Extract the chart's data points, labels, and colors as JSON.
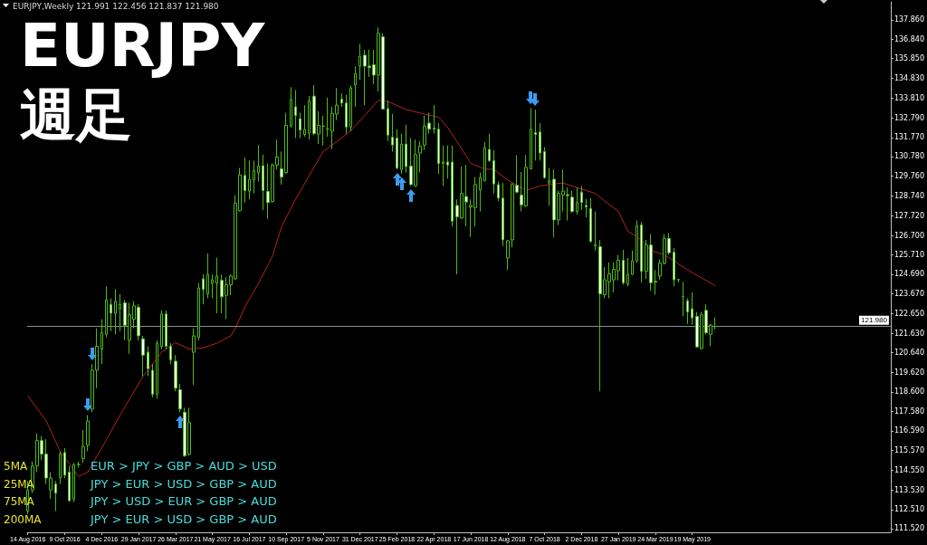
{
  "chart_data": {
    "type": "candlestick",
    "title": "EURJPY",
    "subtitle": "週足",
    "annotations": [
      "EURJPY,Weekly  121.991 122.456 121.837 121.980",
      "5MA",
      "25MA",
      "75MA",
      "200MA",
      "EUR > JPY > GBP > AUD > USD",
      "JPY > EUR > USD > GBP > AUD",
      "JPY > USD > EUR > GBP > AUD",
      "JPY > EUR > USD > GBP > AUD"
    ],
    "color": "#4cbb17",
    "x": [
      "2016-08-14",
      "2016-08-21",
      "2016-08-28",
      "2016-09-04",
      "2016-09-11",
      "2016-09-18",
      "2016-09-25",
      "2016-10-02",
      "2016-10-09",
      "2016-10-16",
      "2016-10-23",
      "2016-10-30",
      "2016-11-06",
      "2016-11-13",
      "2016-11-20",
      "2016-11-27",
      "2016-12-04",
      "2016-12-11",
      "2016-12-18",
      "2016-12-25",
      "2017-01-01",
      "2017-01-08",
      "2017-01-15",
      "2017-01-22",
      "2017-01-29",
      "2017-02-05",
      "2017-02-12",
      "2017-02-19",
      "2017-02-26",
      "2017-03-05",
      "2017-03-12",
      "2017-03-19",
      "2017-03-26",
      "2017-04-02",
      "2017-04-09",
      "2017-04-16",
      "2017-04-23",
      "2017-04-30",
      "2017-05-07",
      "2017-05-14",
      "2017-05-21",
      "2017-05-28",
      "2017-06-04",
      "2017-06-11",
      "2017-06-18",
      "2017-06-25",
      "2017-07-02",
      "2017-07-09",
      "2017-07-16",
      "2017-07-23",
      "2017-07-30",
      "2017-08-06",
      "2017-08-13",
      "2017-08-20",
      "2017-08-27",
      "2017-09-03",
      "2017-09-10",
      "2017-09-17",
      "2017-09-24",
      "2017-10-01",
      "2017-10-08",
      "2017-10-15",
      "2017-10-22",
      "2017-10-29",
      "2017-11-05",
      "2017-11-12",
      "2017-11-19",
      "2017-11-26",
      "2017-12-03",
      "2017-12-10",
      "2017-12-17",
      "2017-12-24",
      "2017-12-31",
      "2018-01-07",
      "2018-01-14",
      "2018-01-21",
      "2018-01-28",
      "2018-02-04",
      "2018-02-11",
      "2018-02-18",
      "2018-02-25",
      "2018-03-04",
      "2018-03-11",
      "2018-03-18",
      "2018-03-25",
      "2018-04-01",
      "2018-04-08",
      "2018-04-15",
      "2018-04-22",
      "2018-04-29",
      "2018-05-06",
      "2018-05-13",
      "2018-05-20",
      "2018-05-27",
      "2018-06-03",
      "2018-06-10",
      "2018-06-17",
      "2018-06-24",
      "2018-07-01",
      "2018-07-08",
      "2018-07-15",
      "2018-07-22",
      "2018-07-29",
      "2018-08-05",
      "2018-08-12",
      "2018-08-19",
      "2018-08-26",
      "2018-09-02",
      "2018-09-09",
      "2018-09-16",
      "2018-09-23",
      "2018-09-30",
      "2018-10-07",
      "2018-10-14",
      "2018-10-21",
      "2018-10-28",
      "2018-11-04",
      "2018-11-11",
      "2018-11-18",
      "2018-11-25",
      "2018-12-02",
      "2018-12-09",
      "2018-12-16",
      "2018-12-23",
      "2018-12-30",
      "2019-01-06",
      "2019-01-13",
      "2019-01-20",
      "2019-01-27",
      "2019-02-03",
      "2019-02-10",
      "2019-02-17",
      "2019-02-24",
      "2019-03-03",
      "2019-03-10",
      "2019-03-17",
      "2019-03-24",
      "2019-03-31",
      "2019-04-07",
      "2019-04-14",
      "2019-04-21",
      "2019-04-28",
      "2019-05-05",
      "2019-05-12",
      "2019-05-19",
      "2019-05-26",
      "2019-06-02",
      "2019-06-09",
      "2019-06-16",
      "2019-06-23"
    ],
    "ohlc": [
      [
        112.43,
        113.98,
        112.28,
        113.52
      ],
      [
        113.52,
        114.99,
        113.36,
        114.76
      ],
      [
        114.76,
        116.46,
        114.45,
        116.08
      ],
      [
        116.08,
        116.31,
        115.07,
        115.38
      ],
      [
        115.38,
        116.15,
        113.83,
        114.14
      ],
      [
        113.52,
        114.45,
        113.05,
        114.14
      ],
      [
        113.83,
        113.98,
        112.43,
        113.36
      ],
      [
        114.14,
        115.53,
        113.83,
        115.38
      ],
      [
        115.46,
        115.69,
        114.14,
        114.29
      ],
      [
        114.45,
        114.76,
        112.9,
        112.97
      ],
      [
        113.05,
        114.92,
        112.9,
        114.84
      ],
      [
        114.84,
        114.99,
        114.68,
        114.84
      ],
      [
        115.15,
        116.62,
        114.92,
        115.77
      ],
      [
        115.84,
        117.4,
        115.53,
        117.09
      ],
      [
        117.71,
        120.03,
        117.55,
        119.72
      ],
      [
        119.72,
        121.89,
        118.79,
        120.96
      ],
      [
        120.81,
        122.36,
        120.03,
        121.66
      ],
      [
        121.58,
        124.06,
        121.43,
        123.36
      ],
      [
        123.13,
        123.44,
        121.74,
        122.67
      ],
      [
        122.67,
        123.91,
        121.58,
        123.29
      ],
      [
        122.9,
        123.67,
        121.74,
        123.13
      ],
      [
        123.21,
        123.36,
        121.27,
        122.05
      ],
      [
        121.27,
        123.21,
        120.57,
        122.59
      ],
      [
        122.36,
        123.29,
        121.89,
        123.05
      ],
      [
        122.98,
        123.13,
        121.27,
        121.5
      ],
      [
        121.35,
        121.5,
        119.41,
        120.5
      ],
      [
        120.65,
        120.96,
        119.41,
        119.8
      ],
      [
        119.72,
        120.03,
        118.32,
        118.48
      ],
      [
        118.48,
        121.27,
        118.25,
        121.12
      ],
      [
        120.96,
        122.82,
        120.81,
        122.63
      ],
      [
        122.63,
        122.82,
        120.81,
        120.96
      ],
      [
        120.96,
        121.12,
        120.03,
        120.26
      ],
      [
        120.19,
        120.5,
        118.63,
        118.79
      ],
      [
        118.71,
        119.02,
        117.55,
        117.71
      ],
      [
        117.55,
        117.78,
        115.23,
        115.3
      ],
      [
        115.38,
        117.78,
        115.3,
        117.01
      ],
      [
        120.65,
        121.89,
        118.95,
        121.5
      ],
      [
        121.43,
        124.22,
        121.27,
        123.98
      ],
      [
        124.45,
        124.68,
        123.13,
        123.91
      ],
      [
        123.67,
        125.77,
        123.44,
        124.68
      ],
      [
        124.22,
        124.68,
        123.44,
        124.4
      ],
      [
        124.22,
        125.54,
        122.67,
        124.6
      ],
      [
        124.37,
        124.68,
        122.67,
        123.52
      ],
      [
        123.6,
        124.53,
        122.36,
        124.14
      ],
      [
        124.14,
        124.68,
        123.6,
        124.6
      ],
      [
        124.45,
        128.79,
        124.4,
        128.37
      ],
      [
        127.98,
        130.19,
        127.94,
        129.83
      ],
      [
        129.8,
        130.73,
        128.4,
        129.02
      ],
      [
        128.99,
        130.57,
        128.56,
        129.6
      ],
      [
        129.57,
        130.57,
        128.87,
        130.06
      ],
      [
        129.95,
        131.38,
        129.49,
        130.29
      ],
      [
        130.31,
        130.88,
        128.01,
        129.02
      ],
      [
        128.98,
        130.42,
        127.55,
        128.4
      ],
      [
        128.45,
        130.42,
        128.4,
        130.34
      ],
      [
        130.34,
        131.66,
        130.11,
        130.76
      ],
      [
        130.15,
        131.04,
        129.33,
        129.72
      ],
      [
        129.95,
        133.05,
        129.88,
        132.4
      ],
      [
        132.36,
        134.37,
        132.28,
        133.75
      ],
      [
        133.36,
        134.22,
        131.74,
        132.9
      ],
      [
        132.74,
        133.05,
        131.74,
        132.15
      ],
      [
        131.92,
        133.44,
        131.81,
        132.17
      ],
      [
        132.0,
        133.91,
        131.66,
        133.67
      ],
      [
        133.91,
        134.48,
        131.89,
        131.97
      ],
      [
        131.94,
        133.13,
        131.43,
        132.4
      ],
      [
        132.35,
        132.9,
        131.35,
        132.36
      ],
      [
        132.2,
        133.83,
        131.81,
        132.2
      ],
      [
        132.09,
        133.36,
        131.16,
        133.01
      ],
      [
        132.98,
        134.33,
        132.67,
        133.44
      ],
      [
        133.75,
        134.06,
        133.36,
        133.55
      ],
      [
        133.55,
        133.98,
        131.97,
        132.31
      ],
      [
        132.31,
        134.45,
        132.09,
        134.33
      ],
      [
        134.48,
        135.46,
        133.36,
        135.07
      ],
      [
        135.46,
        136.62,
        134.76,
        135.97
      ],
      [
        136.03,
        136.31,
        133.44,
        135.46
      ],
      [
        135.46,
        136.31,
        134.91,
        135.38
      ],
      [
        135.53,
        136.31,
        134.53,
        135.0
      ],
      [
        135.0,
        137.47,
        134.14,
        137.16
      ],
      [
        136.98,
        137.16,
        133.24,
        133.24
      ],
      [
        133.26,
        133.67,
        131.58,
        131.89
      ],
      [
        131.78,
        132.98,
        131.04,
        131.38
      ],
      [
        131.74,
        132.2,
        130.11,
        130.19
      ],
      [
        130.11,
        131.97,
        129.88,
        131.43
      ],
      [
        131.43,
        132.43,
        129.95,
        130.26
      ],
      [
        130.29,
        131.74,
        129.26,
        129.33
      ],
      [
        129.26,
        131.66,
        129.21,
        130.88
      ],
      [
        130.96,
        131.58,
        129.95,
        131.32
      ],
      [
        131.38,
        132.9,
        131.12,
        132.36
      ],
      [
        132.51,
        133.05,
        131.97,
        132.2
      ],
      [
        132.25,
        133.44,
        131.97,
        132.2
      ],
      [
        132.2,
        132.51,
        129.88,
        130.42
      ],
      [
        130.42,
        131.35,
        129.26,
        130.5
      ],
      [
        130.5,
        131.35,
        129.64,
        130.34
      ],
      [
        130.5,
        131.35,
        127.16,
        127.44
      ],
      [
        128.25,
        128.56,
        124.68,
        127.66
      ],
      [
        127.6,
        130.26,
        127.55,
        128.87
      ],
      [
        128.71,
        130.34,
        127.16,
        128.43
      ],
      [
        128.17,
        128.56,
        126.62,
        128.25
      ],
      [
        128.14,
        129.72,
        127.16,
        129.33
      ],
      [
        129.05,
        129.95,
        127.94,
        129.69
      ],
      [
        129.53,
        131.53,
        129.49,
        131.23
      ],
      [
        131.15,
        131.97,
        130.5,
        130.57
      ],
      [
        130.57,
        131.12,
        128.87,
        129.36
      ],
      [
        129.33,
        129.49,
        128.48,
        128.63
      ],
      [
        128.63,
        129.41,
        126.15,
        126.47
      ],
      [
        125.53,
        126.47,
        124.91,
        126.42
      ],
      [
        126.47,
        129.41,
        126.08,
        129.33
      ],
      [
        129.29,
        130.85,
        128.87,
        128.94
      ],
      [
        128.79,
        129.98,
        127.94,
        128.28
      ],
      [
        128.22,
        130.85,
        128.17,
        130.22
      ],
      [
        130.15,
        133.29,
        130.11,
        132.2
      ],
      [
        132.02,
        133.21,
        130.57,
        131.92
      ],
      [
        132.05,
        132.51,
        130.57,
        130.96
      ],
      [
        131.04,
        131.27,
        129.64,
        129.69
      ],
      [
        129.41,
        130.19,
        128.25,
        129.53
      ],
      [
        129.61,
        130.11,
        126.62,
        127.5
      ],
      [
        127.5,
        129.02,
        127.24,
        128.87
      ],
      [
        128.79,
        130.11,
        127.94,
        128.99
      ],
      [
        128.81,
        129.18,
        127.47,
        128.76
      ],
      [
        128.68,
        129.02,
        127.86,
        127.94
      ],
      [
        127.94,
        129.18,
        127.78,
        128.4
      ],
      [
        128.94,
        129.26,
        128.01,
        128.4
      ],
      [
        128.25,
        128.59,
        127.63,
        128.17
      ],
      [
        128.09,
        128.63,
        126.31,
        126.39
      ],
      [
        126.15,
        127.94,
        125.92,
        126.23
      ],
      [
        126.11,
        126.46,
        118.63,
        123.67
      ],
      [
        123.63,
        125.07,
        123.44,
        124.4
      ],
      [
        124.29,
        125.3,
        123.44,
        124.71
      ],
      [
        124.4,
        125.3,
        123.75,
        124.94
      ],
      [
        124.87,
        125.69,
        124.37,
        125.41
      ],
      [
        125.41,
        125.95,
        124.14,
        124.25
      ],
      [
        124.18,
        125.53,
        124.06,
        124.68
      ],
      [
        124.68,
        125.92,
        124.65,
        125.38
      ],
      [
        125.38,
        127.47,
        125.3,
        127.19
      ],
      [
        127.24,
        127.4,
        124.25,
        124.84
      ],
      [
        124.84,
        126.46,
        124.45,
        126.2
      ],
      [
        126.2,
        126.77,
        123.83,
        124.25
      ],
      [
        124.32,
        124.91,
        123.63,
        124.29
      ],
      [
        124.6,
        125.46,
        124.4,
        125.27
      ],
      [
        125.27,
        126.77,
        125.18,
        126.54
      ],
      [
        126.54,
        126.82,
        125.69,
        125.8
      ],
      [
        125.83,
        126.05,
        124.06,
        124.4
      ],
      [
        124.42,
        124.45,
        124.25,
        124.4
      ],
      [
        123.53,
        124.29,
        122.51,
        123.52
      ],
      [
        123.32,
        123.44,
        122.12,
        122.74
      ],
      [
        122.9,
        123.75,
        122.08,
        122.43
      ],
      [
        122.51,
        122.74,
        120.88,
        120.93
      ],
      [
        120.84,
        122.74,
        120.81,
        122.59
      ],
      [
        122.82,
        123.13,
        121.58,
        121.66
      ],
      [
        121.58,
        122.12,
        120.96,
        122.05
      ],
      [
        121.991,
        122.456,
        121.837,
        121.98
      ]
    ],
    "series": [
      {
        "type": "line",
        "color": "#b22222",
        "marker": "none",
        "x": [
          "2016-08-14",
          "2016-09-11",
          "2016-10-02",
          "2016-10-30",
          "2016-11-13",
          "2016-12-04",
          "2017-01-01",
          "2017-02-05",
          "2017-03-05",
          "2017-03-26",
          "2017-04-16",
          "2017-05-07",
          "2017-05-28",
          "2017-06-18",
          "2017-06-25",
          "2017-07-09",
          "2017-07-30",
          "2017-08-20",
          "2017-09-03",
          "2017-09-24",
          "2017-10-15",
          "2017-11-05",
          "2017-12-03",
          "2017-12-17",
          "2018-01-07",
          "2018-01-28",
          "2018-02-11",
          "2018-03-11",
          "2018-04-08",
          "2018-04-29",
          "2018-05-13",
          "2018-06-03",
          "2018-06-17",
          "2018-07-08",
          "2018-07-22",
          "2018-08-12",
          "2018-09-09",
          "2018-09-30",
          "2018-10-21",
          "2018-11-04",
          "2018-12-02",
          "2018-12-23",
          "2019-01-06",
          "2019-01-27",
          "2019-02-10",
          "2019-03-03",
          "2019-03-17",
          "2019-04-07",
          "2019-04-28",
          "2019-05-19",
          "2019-06-09",
          "2019-06-23"
        ],
        "values": [
          118.4,
          117.09,
          115.53,
          114.21,
          114.45,
          115.69,
          117.4,
          119.41,
          120.65,
          121.15,
          120.81,
          120.88,
          121.12,
          121.5,
          121.89,
          122.98,
          124.22,
          125.61,
          127.16,
          128.56,
          129.8,
          131.04,
          131.74,
          132.12,
          132.9,
          133.7,
          133.64,
          133.21,
          132.98,
          132.82,
          132.28,
          131.19,
          130.42,
          130.14,
          130.11,
          129.57,
          129.02,
          129.26,
          129.36,
          129.41,
          129.1,
          128.87,
          128.48,
          127.94,
          126.93,
          126.46,
          125.92,
          125.69,
          125.22,
          124.76,
          124.37,
          124.09
        ]
      }
    ],
    "xlim": [
      "2016-08-13",
      "2020-03-15"
    ],
    "xticks": [
      {
        "value": "2016-08-14",
        "label": "14 Aug 2016"
      },
      {
        "value": "2016-10-09",
        "label": "9 Oct 2016"
      },
      {
        "value": "2016-12-04",
        "label": "4 Dec 2016"
      },
      {
        "value": "2017-01-29",
        "label": "29 Jan 2017"
      },
      {
        "value": "2017-03-26",
        "label": "26 Mar 2017"
      },
      {
        "value": "2017-05-21",
        "label": "21 May 2017"
      },
      {
        "value": "2017-07-16",
        "label": "16 Jul 2017"
      },
      {
        "value": "2017-09-10",
        "label": "10 Sep 2017"
      },
      {
        "value": "2017-11-05",
        "label": "5 Nov 2017"
      },
      {
        "value": "2017-12-31",
        "label": "31 Dec 2017"
      },
      {
        "value": "2018-02-25",
        "label": "25 Feb 2018"
      },
      {
        "value": "2018-04-22",
        "label": "22 Apr 2018"
      },
      {
        "value": "2018-06-17",
        "label": "17 Jun 2018"
      },
      {
        "value": "2018-08-12",
        "label": "12 Aug 2018"
      },
      {
        "value": "2018-10-07",
        "label": "7 Oct 2018"
      },
      {
        "value": "2018-12-02",
        "label": "2 Dec 2018"
      },
      {
        "value": "2019-01-27",
        "label": "27 Jan 2019"
      },
      {
        "value": "2019-03-24",
        "label": "24 Mar 2019"
      },
      {
        "value": "2019-05-19",
        "label": "19 May 2019"
      }
    ],
    "ylim": [
      111.33,
      138.79
    ],
    "yticks": [
      {
        "value": 137.86,
        "label": "137.860"
      },
      {
        "value": 136.84,
        "label": "136.840"
      },
      {
        "value": 135.85,
        "label": "135.850"
      },
      {
        "value": 134.83,
        "label": "134.830"
      },
      {
        "value": 133.81,
        "label": "133.810"
      },
      {
        "value": 132.79,
        "label": "132.790"
      },
      {
        "value": 131.77,
        "label": "131.770"
      },
      {
        "value": 130.78,
        "label": "130.780"
      },
      {
        "value": 129.76,
        "label": "129.760"
      },
      {
        "value": 128.74,
        "label": "128.740"
      },
      {
        "value": 127.72,
        "label": "127.720"
      },
      {
        "value": 126.7,
        "label": "126.700"
      },
      {
        "value": 125.71,
        "label": "125.710"
      },
      {
        "value": 124.69,
        "label": "124.690"
      },
      {
        "value": 123.67,
        "label": "123.670"
      },
      {
        "value": 122.65,
        "label": "122.650"
      },
      {
        "value": 121.63,
        "label": "121.630"
      },
      {
        "value": 120.64,
        "label": "120.640"
      },
      {
        "value": 119.62,
        "label": "119.620"
      },
      {
        "value": 118.6,
        "label": "118.600"
      },
      {
        "value": 117.58,
        "label": "117.580"
      },
      {
        "value": 116.59,
        "label": "116.590"
      },
      {
        "value": 115.57,
        "label": "115.570"
      },
      {
        "value": 114.55,
        "label": "114.550"
      },
      {
        "value": 113.53,
        "label": "113.530"
      },
      {
        "value": 112.51,
        "label": "112.510"
      },
      {
        "value": 111.52,
        "label": "111.520"
      }
    ],
    "ref_lines": [
      {
        "axis": "y",
        "value": 121.98,
        "label": "121.980",
        "color": "#8c8c8c"
      }
    ]
  }
}
